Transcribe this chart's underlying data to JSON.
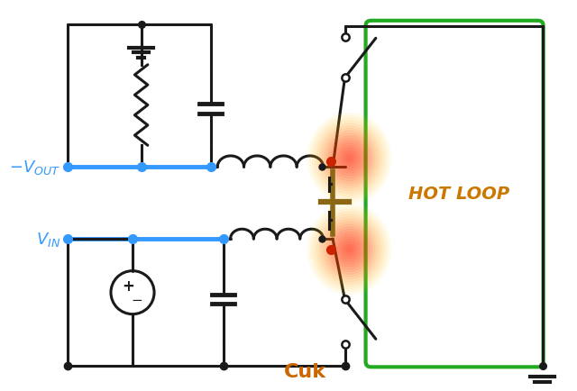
{
  "title": "Cuk",
  "title_color": "#cc6600",
  "title_fontsize": 16,
  "background_color": "#ffffff",
  "line_color": "#1a1a1a",
  "blue_color": "#3399ff",
  "green_color": "#22aa22",
  "hot_loop_color": "#cc7700",
  "gold_color": "#8B6914",
  "red_dot_color": "#cc2200",
  "hot_loop_text": "HOT LOOP",
  "vout_text": "$-V_{OUT}$",
  "vin_text": "$V_{IN}$",
  "figsize": [
    6.4,
    4.35
  ],
  "dpi": 100
}
